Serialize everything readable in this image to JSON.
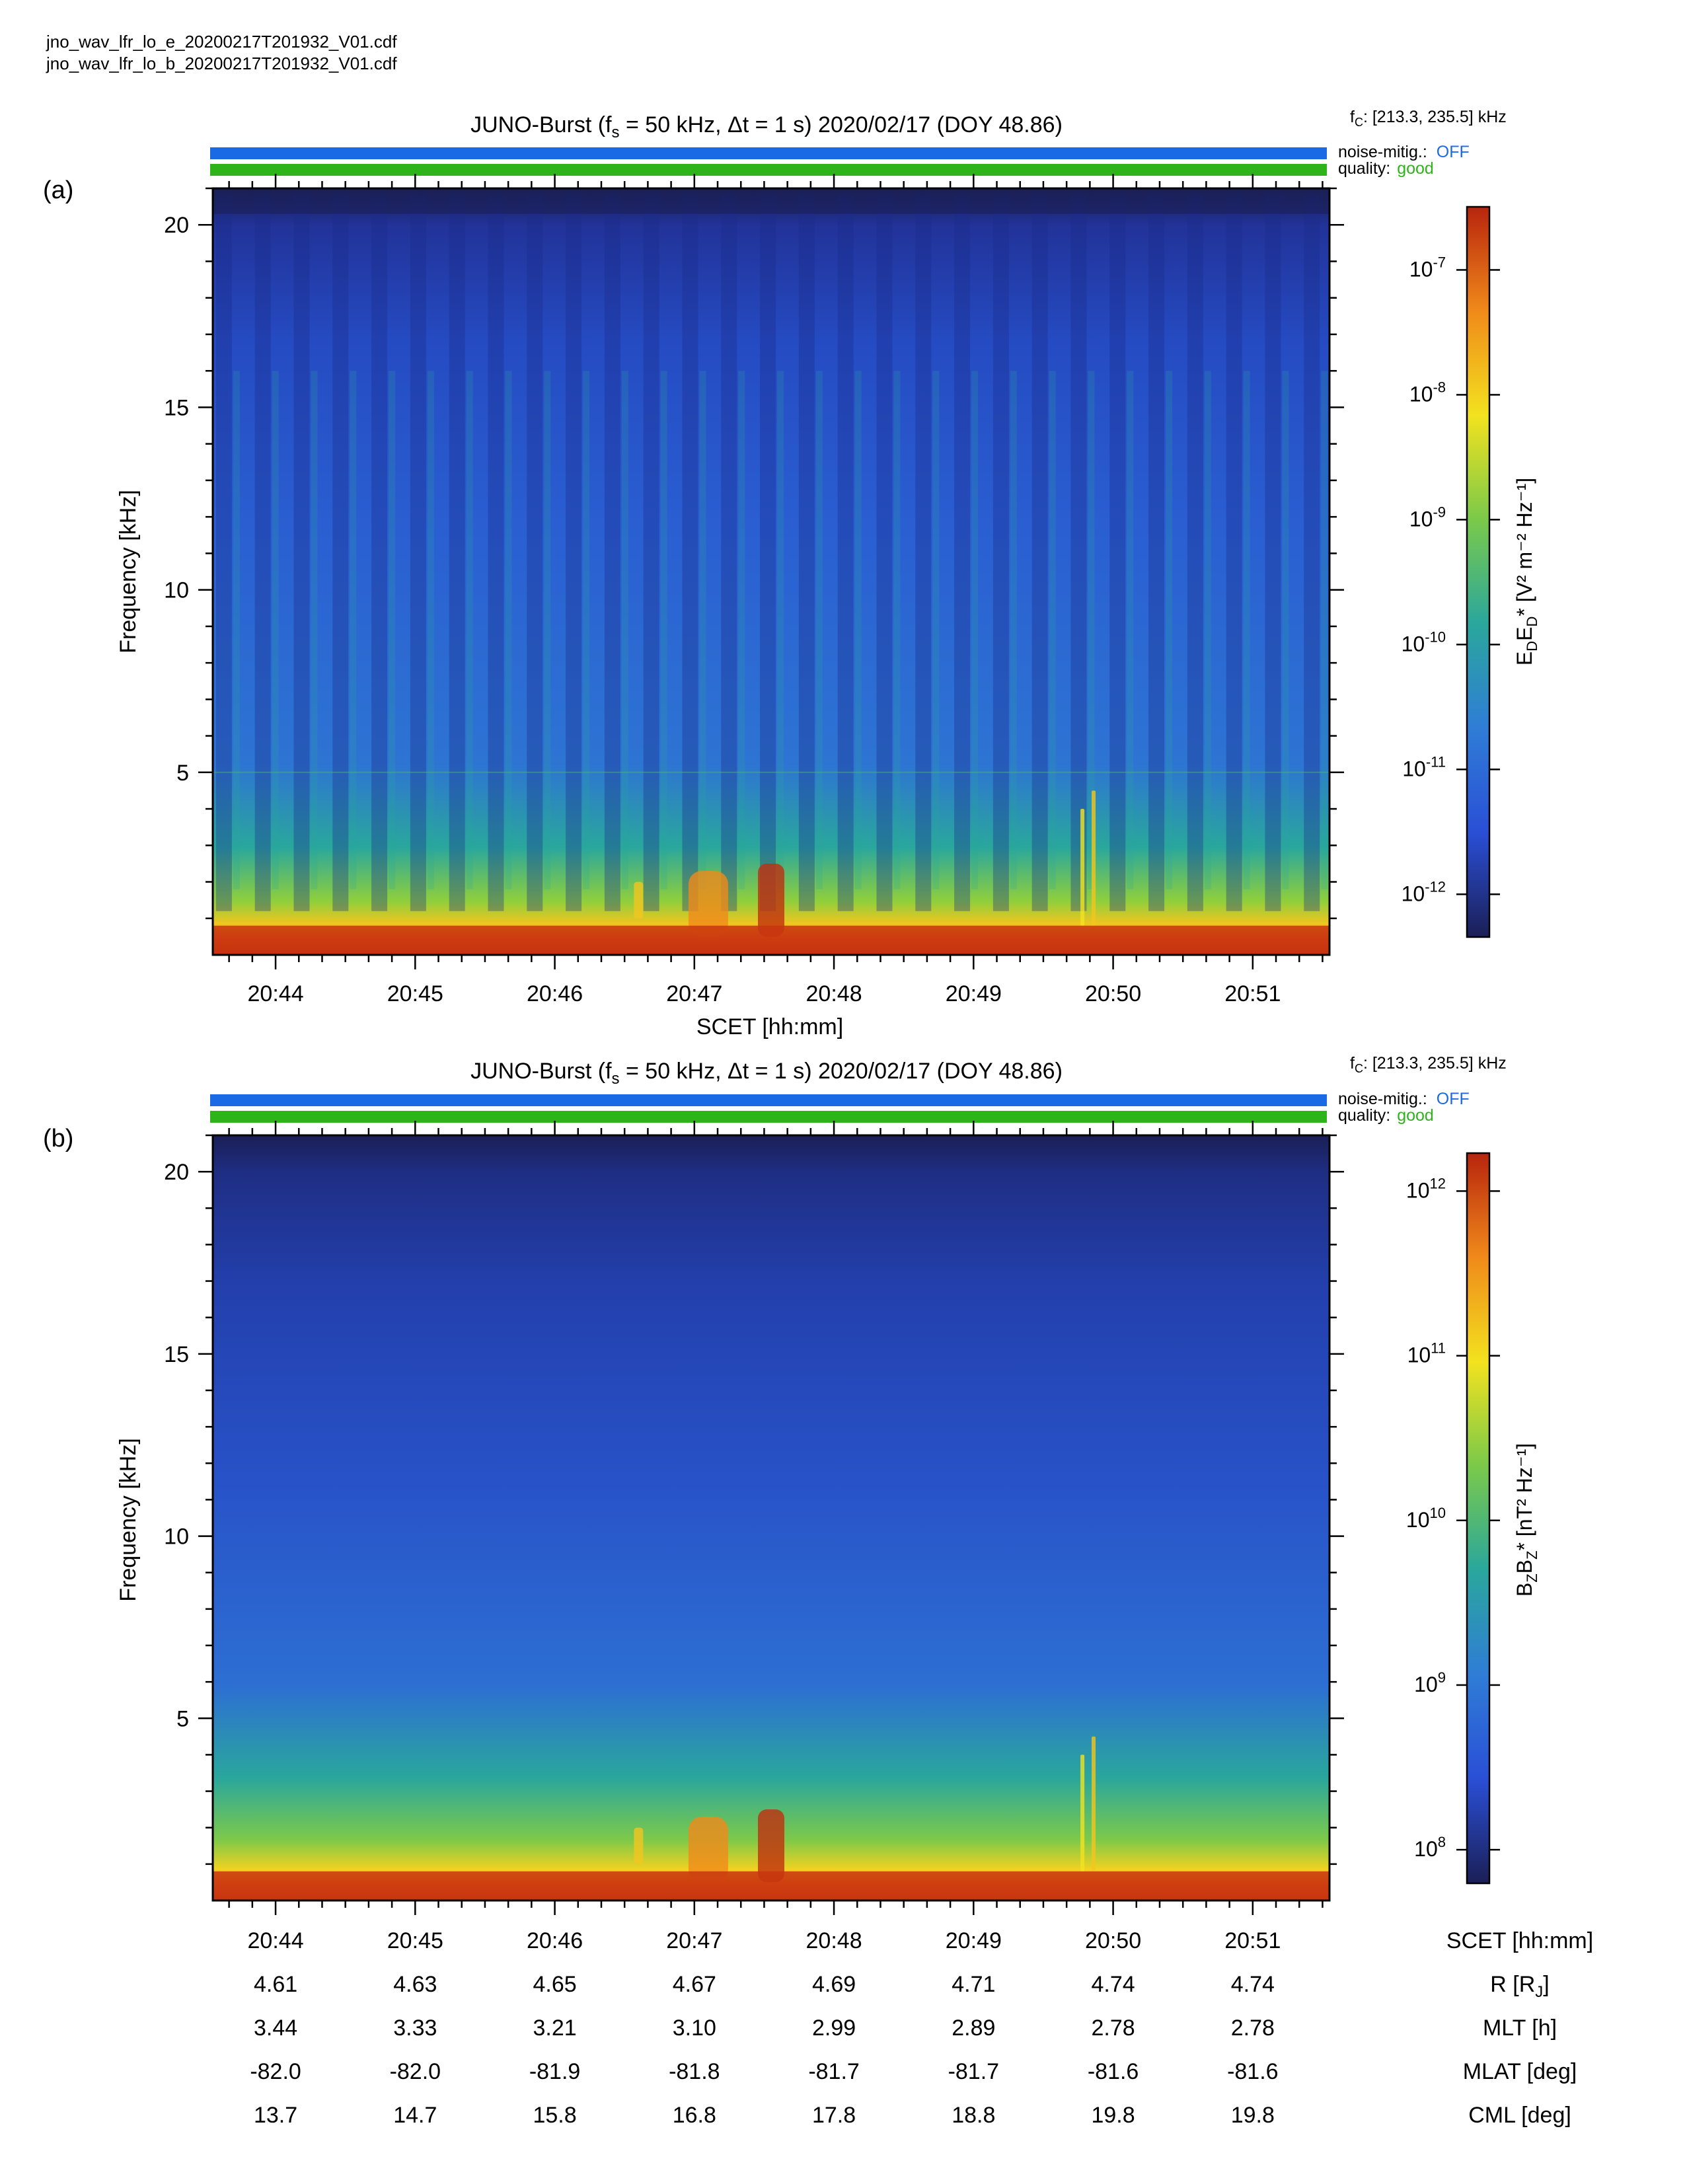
{
  "files": [
    "jno_wav_lfr_lo_e_20200217T201932_V01.cdf",
    "jno_wav_lfr_lo_b_20200217T201932_V01.cdf"
  ],
  "colors": {
    "noise_bar": "#1a6ae6",
    "quality_bar": "#2fb31a",
    "colormap": [
      "#1b1f56",
      "#2a4fd6",
      "#2f7dd6",
      "#2aa79c",
      "#7ac94a",
      "#f2e21f",
      "#f08a1a",
      "#b8240d"
    ]
  },
  "panels": [
    {
      "label": "(a)",
      "title_prefix": "JUNO-Burst (f",
      "title_sub": "s",
      "title_suffix": " = 50 kHz, Δt = 1 s)  2020/02/17 (DOY 48.86)",
      "fc_label": "f",
      "fc_sub": "C",
      "fc_value": ": [213.3, 235.5] kHz",
      "noise_label": "noise-mitig.:",
      "noise_value": "OFF",
      "quality_label": "quality:",
      "quality_value": "good",
      "xlabel": "SCET [hh:mm]",
      "ylabel": "Frequency [kHz]",
      "colorbar": {
        "label_main": "E",
        "label_sub1": "D",
        "label_mid": "E",
        "label_sub2": "D",
        "label_units": "* [V² m⁻² Hz⁻¹]",
        "scale": "log",
        "tick_exponents": [
          "-7",
          "-8",
          "-9",
          "-10",
          "-11",
          "-12"
        ]
      }
    },
    {
      "label": "(b)",
      "title_prefix": "JUNO-Burst (f",
      "title_sub": "s",
      "title_suffix": " = 50 kHz, Δt = 1 s)  2020/02/17 (DOY 48.86)",
      "fc_label": "f",
      "fc_sub": "C",
      "fc_value": ": [213.3, 235.5] kHz",
      "noise_label": "noise-mitig.:",
      "noise_value": "OFF",
      "quality_label": "quality:",
      "quality_value": "good",
      "ylabel": "Frequency [kHz]",
      "colorbar": {
        "label_main": "B",
        "label_sub1": "Z",
        "label_mid": "B",
        "label_sub2": "Z",
        "label_units": "* [nT² Hz⁻¹]",
        "scale": "log",
        "tick_exponents": [
          "12",
          "11",
          "10",
          "9",
          "8"
        ]
      }
    }
  ],
  "chart_data": [
    {
      "type": "heatmap",
      "title": "JUNO-Burst (fs = 50 kHz, Δt = 1 s)  2020/02/17 (DOY 48.86)",
      "xlabel": "SCET [hh:mm]",
      "ylabel": "Frequency [kHz]",
      "x_ticks": [
        "20:44",
        "20:45",
        "20:46",
        "20:47",
        "20:48",
        "20:49",
        "20:50",
        "20:51"
      ],
      "y_ticks": [
        5,
        10,
        15,
        20
      ],
      "xlim": [
        "20:43.55",
        "20:51.55"
      ],
      "ylim": [
        0,
        21
      ],
      "colorbar_label": "E_D E_D* [V^2 m^-2 Hz^-1]",
      "colorbar_range": [
        1e-12,
        1e-07
      ],
      "colorbar_scale": "log",
      "features": {
        "striations": "periodic vertical bands ~every 16.7 s (spin modulation)",
        "intense_low_freq": "below ~0.6 kHz",
        "burst_events": [
          "20:47.0–20:47.6 near 1–2 kHz",
          "20:49.8 narrow vertical lines up to ~4 kHz"
        ]
      }
    },
    {
      "type": "heatmap",
      "title": "JUNO-Burst (fs = 50 kHz, Δt = 1 s)  2020/02/17 (DOY 48.86)",
      "xlabel": "SCET [hh:mm]",
      "ylabel": "Frequency [kHz]",
      "x_ticks": [
        "20:44",
        "20:45",
        "20:46",
        "20:47",
        "20:48",
        "20:49",
        "20:50",
        "20:51"
      ],
      "y_ticks": [
        5,
        10,
        15,
        20
      ],
      "xlim": [
        "20:43.55",
        "20:51.55"
      ],
      "ylim": [
        0,
        21
      ],
      "colorbar_label": "B_Z B_Z* [nT^2 Hz^-1]",
      "colorbar_range": [
        100000000.0,
        1000000000000.0
      ],
      "colorbar_scale": "log",
      "ephemeris": {
        "rows": [
          {
            "name": "SCET [hh:mm]",
            "values": [
              "20:44",
              "20:45",
              "20:46",
              "20:47",
              "20:48",
              "20:49",
              "20:50",
              "20:51"
            ]
          },
          {
            "name": "R [R",
            "sub": "J",
            "tail": "]",
            "values": [
              "4.61",
              "4.63",
              "4.65",
              "4.67",
              "4.69",
              "4.71",
              "4.74",
              "4.74"
            ]
          },
          {
            "name": "MLT [h]",
            "values": [
              "3.44",
              "3.33",
              "3.21",
              "3.10",
              "2.99",
              "2.89",
              "2.78",
              "2.78"
            ]
          },
          {
            "name": "MLAT [deg]",
            "values": [
              "-82.0",
              "-82.0",
              "-81.9",
              "-81.8",
              "-81.7",
              "-81.7",
              "-81.6",
              "-81.6"
            ]
          },
          {
            "name": "CML [deg]",
            "values": [
              "13.7",
              "14.7",
              "15.8",
              "16.8",
              "17.8",
              "18.8",
              "19.8",
              "19.8"
            ]
          }
        ]
      }
    }
  ]
}
